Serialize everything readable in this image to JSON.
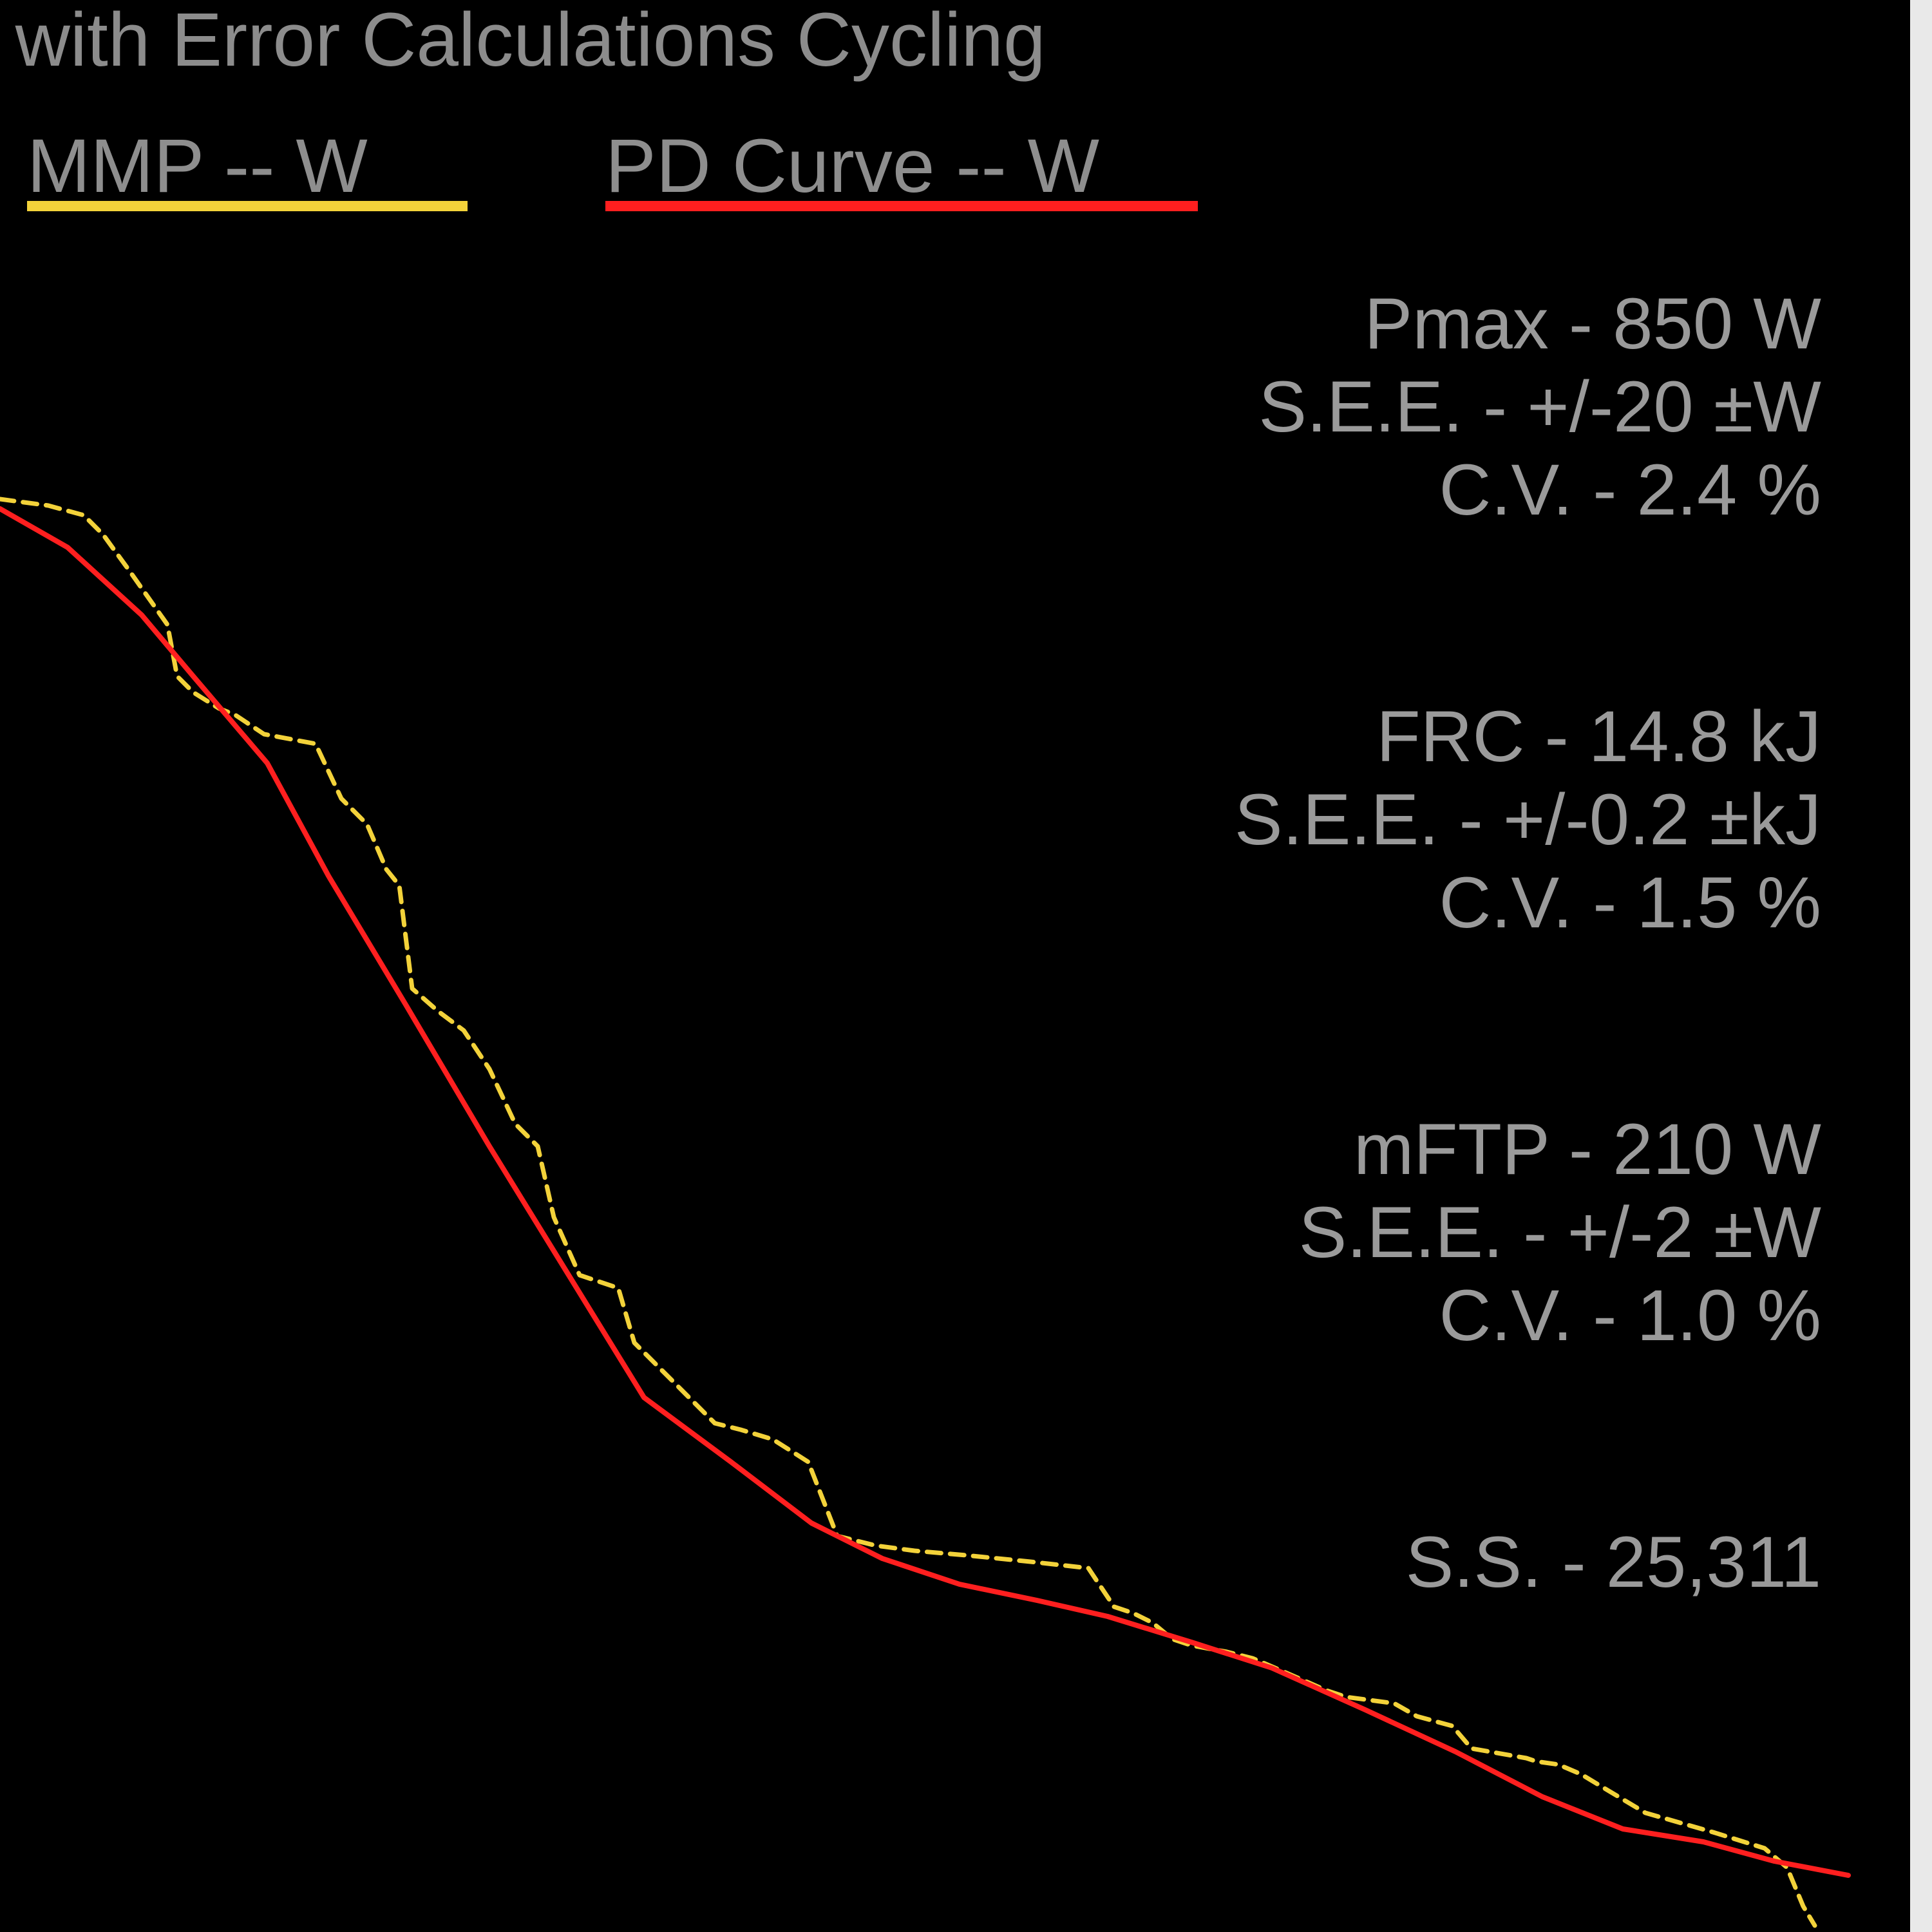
{
  "chart_data": {
    "type": "line",
    "title": "t with Error Calculations Cycling",
    "xlabel": "",
    "ylabel": "",
    "grid": false,
    "legend_position": "top-left",
    "legend": [
      {
        "label": "MMP  -- W",
        "color": "#f3d23a",
        "style": "dashed"
      },
      {
        "label": "PD Curve  -- W",
        "color": "#ff1f1f",
        "style": "solid"
      }
    ],
    "series": [
      {
        "name": "MMP  -- W",
        "color": "#f3d23a",
        "style": "dashed",
        "x": [
          0,
          75,
          130,
          160,
          200,
          260,
          275,
          300,
          340,
          365,
          410,
          490,
          530,
          570,
          600,
          620,
          640,
          680,
          720,
          760,
          800,
          835,
          860,
          900,
          960,
          985,
          1025,
          1060,
          1110,
          1150,
          1200,
          1255,
          1300,
          1360,
          1420,
          1500,
          1600,
          1690,
          1730,
          1760,
          1790,
          1820,
          1850,
          1905,
          1945,
          1980,
          2060,
          2090,
          2165,
          2200,
          2255,
          2285,
          2370,
          2385,
          2420,
          2455,
          2530,
          2555,
          2625,
          2660,
          2740,
          2775,
          2800,
          2818
        ],
        "y": [
          775,
          785,
          800,
          830,
          885,
          970,
          1050,
          1075,
          1100,
          1110,
          1140,
          1155,
          1240,
          1280,
          1350,
          1375,
          1535,
          1570,
          1600,
          1660,
          1745,
          1780,
          1890,
          1980,
          2000,
          2085,
          2125,
          2160,
          2210,
          2220,
          2235,
          2270,
          2385,
          2400,
          2408,
          2415,
          2425,
          2435,
          2495,
          2505,
          2520,
          2545,
          2555,
          2565,
          2575,
          2590,
          2625,
          2635,
          2645,
          2665,
          2680,
          2715,
          2730,
          2735,
          2740,
          2755,
          2800,
          2815,
          2835,
          2845,
          2870,
          2900,
          2960,
          2990
        ]
      },
      {
        "name": "PD Curve  -- W",
        "color": "#ff1f1f",
        "style": "solid",
        "x": [
          0,
          105,
          220,
          300,
          415,
          510,
          630,
          760,
          880,
          1000,
          1135,
          1260,
          1370,
          1490,
          1610,
          1720,
          1850,
          1975,
          2120,
          2260,
          2395,
          2520,
          2645,
          2755,
          2870
        ],
        "y": [
          790,
          850,
          955,
          1050,
          1185,
          1360,
          1560,
          1780,
          1975,
          2170,
          2270,
          2365,
          2420,
          2460,
          2485,
          2510,
          2550,
          2590,
          2655,
          2720,
          2790,
          2840,
          2860,
          2890,
          2912
        ]
      }
    ]
  },
  "stats": {
    "pmax": "Pmax - 850 W",
    "pmax_see": "S.E.E. - +/-20 ±W",
    "pmax_cv": "C.V. - 2.4 %",
    "frc": "FRC - 14.8 kJ",
    "frc_see": "S.E.E. - +/-0.2 ±kJ",
    "frc_cv": "C.V. - 1.5 %",
    "mftp": "mFTP - 210 W",
    "mftp_see": "S.E.E. - +/-2 ±W",
    "mftp_cv": "C.V. - 1.0 %",
    "ss": "S.S. - 25,311"
  },
  "colors": {
    "background": "#000000",
    "text": "#9a9a9a",
    "mmp": "#f3d23a",
    "pd_curve": "#ff1f1f",
    "border": "#e9e9e9"
  }
}
